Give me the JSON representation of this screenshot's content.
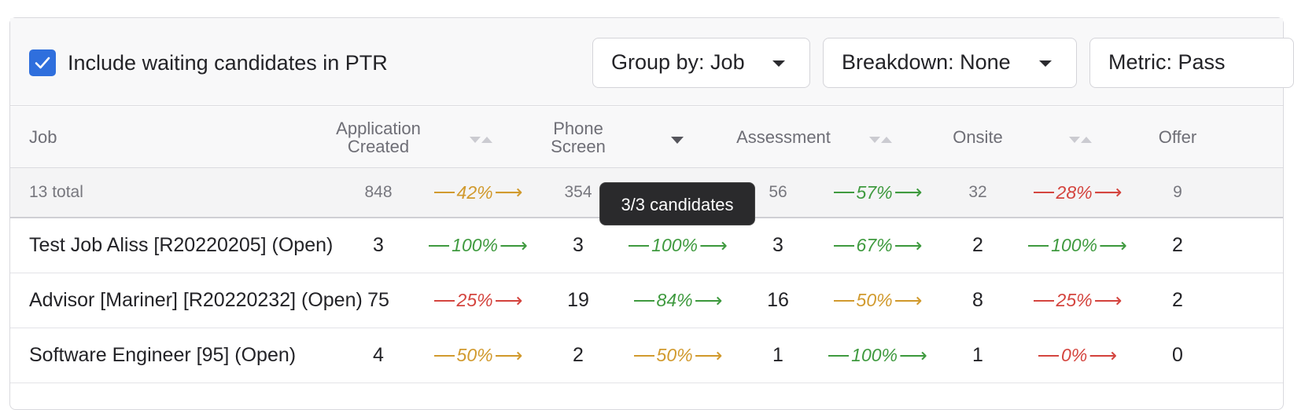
{
  "toolbar": {
    "include_waiting": {
      "label": "Include waiting candidates in PTR",
      "checked": true
    },
    "group_by": "Group by: Job",
    "breakdown": "Breakdown: None",
    "metric": "Metric: Pass"
  },
  "colors": {
    "accent": "#2f6fdd",
    "good": "#3f9a3f",
    "warn": "#d19a2e",
    "bad": "#d4453f"
  },
  "table": {
    "headers": {
      "job": "Job",
      "application_created_1": "Application",
      "application_created_2": "Created",
      "phone_screen_1": "Phone",
      "phone_screen_2": "Screen",
      "assessment": "Assessment",
      "onsite": "Onsite",
      "offer": "Offer"
    },
    "total": {
      "label": "13 total",
      "application_created": "848",
      "app_to_phone": "42%",
      "phone_screen": "354",
      "assessment": "56",
      "assess_to_onsite": "57%",
      "onsite": "32",
      "onsite_to_offer": "28%",
      "offer": "9"
    },
    "rows": [
      {
        "job": "Test Job Aliss [R20220205] (Open)",
        "application_created": "3",
        "app_to_phone": "100%",
        "phone_screen": "3",
        "phone_to_assess": "100%",
        "assessment": "3",
        "assess_to_onsite": "67%",
        "onsite": "2",
        "onsite_to_offer": "100%",
        "offer": "2"
      },
      {
        "job": "Advisor [Mariner] [R20220232] (Open)",
        "application_created": "75",
        "app_to_phone": "25%",
        "phone_screen": "19",
        "phone_to_assess": "84%",
        "assessment": "16",
        "assess_to_onsite": "50%",
        "onsite": "8",
        "onsite_to_offer": "25%",
        "offer": "2"
      },
      {
        "job": "Software Engineer [95] (Open)",
        "application_created": "4",
        "app_to_phone": "50%",
        "phone_screen": "2",
        "phone_to_assess": "50%",
        "assessment": "1",
        "assess_to_onsite": "100%",
        "onsite": "1",
        "onsite_to_offer": "0%",
        "offer": "0"
      }
    ]
  },
  "tooltip": "3/3 candidates",
  "icons": {
    "checkbox": "check-icon",
    "dropdown": "caret-down-icon",
    "sort": "sort-icon",
    "arrow": "arrow-right-icon"
  }
}
